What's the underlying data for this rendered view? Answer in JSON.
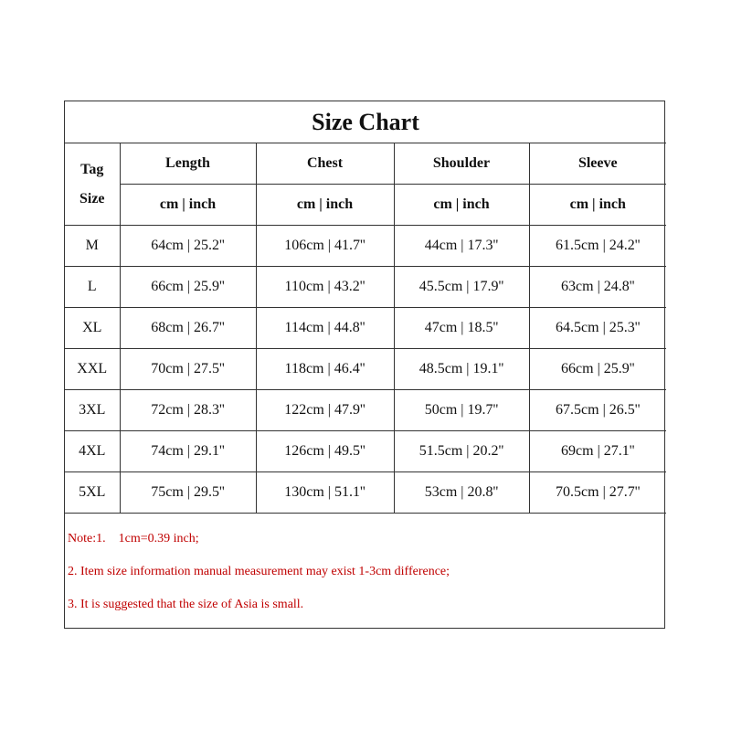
{
  "title": "Size Chart",
  "tag_header": [
    "Tag",
    "Size"
  ],
  "columns": [
    "Length",
    "Chest",
    "Shoulder",
    "Sleeve"
  ],
  "unit_label": "cm | inch",
  "rows": [
    {
      "size": "M",
      "values": [
        "64cm | 25.2''",
        "106cm | 41.7''",
        "44cm | 17.3''",
        "61.5cm | 24.2''"
      ]
    },
    {
      "size": "L",
      "values": [
        "66cm | 25.9''",
        "110cm | 43.2''",
        "45.5cm | 17.9''",
        "63cm | 24.8''"
      ]
    },
    {
      "size": "XL",
      "values": [
        "68cm | 26.7''",
        "114cm | 44.8''",
        "47cm | 18.5''",
        "64.5cm | 25.3''"
      ]
    },
    {
      "size": "XXL",
      "values": [
        "70cm | 27.5''",
        "118cm | 46.4''",
        "48.5cm | 19.1''",
        "66cm | 25.9''"
      ]
    },
    {
      "size": "3XL",
      "values": [
        "72cm | 28.3''",
        "122cm | 47.9''",
        "50cm | 19.7''",
        "67.5cm | 26.5''"
      ]
    },
    {
      "size": "4XL",
      "values": [
        "74cm | 29.1''",
        "126cm | 49.5''",
        "51.5cm | 20.2''",
        "69cm | 27.1''"
      ]
    },
    {
      "size": "5XL",
      "values": [
        "75cm | 29.5''",
        "130cm | 51.1''",
        "53cm | 20.8''",
        "70.5cm | 27.7''"
      ]
    }
  ],
  "notes": [
    "Note:1.    1cm=0.39 inch;",
    "2.  Item size information manual measurement may exist 1-3cm difference;",
    "3.  It is suggested that the size of Asia is small."
  ],
  "colors": {
    "note_text": "#c00000",
    "border": "#333333"
  }
}
